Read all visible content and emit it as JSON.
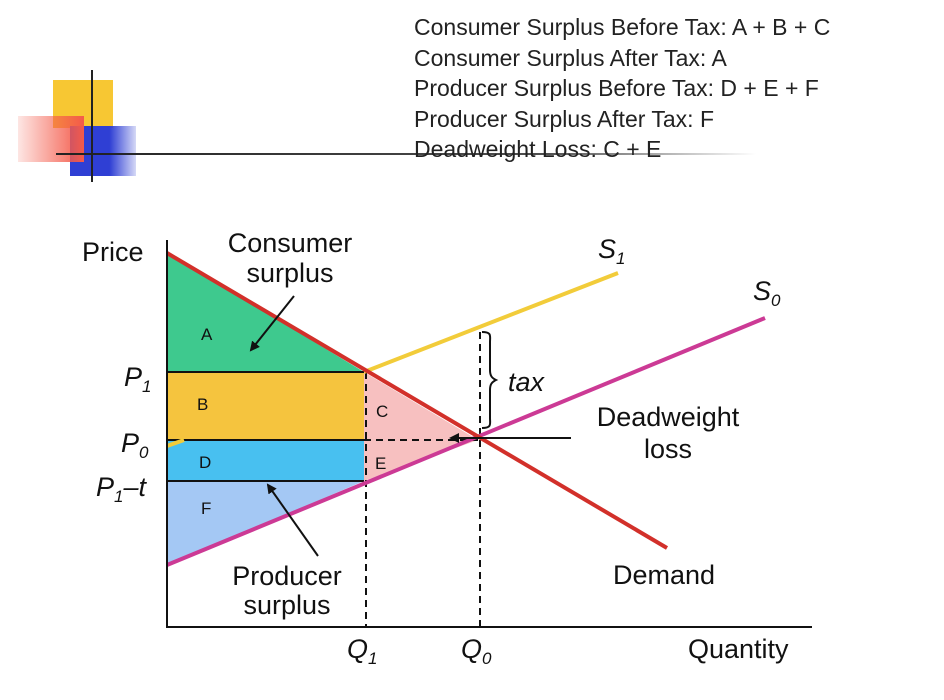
{
  "legend": {
    "line1": "Consumer Surplus Before Tax: A + B + C",
    "line2": "Consumer Surplus After Tax: A",
    "line3": "Producer Surplus Before Tax: D + E + F",
    "line4": "Producer Surplus After Tax: F",
    "line5": "Deadweight Loss: C + E"
  },
  "axes": {
    "y_label": "Price",
    "x_label": "Quantity"
  },
  "price_labels": {
    "p1": "P",
    "p1_sub": "1",
    "p0": "P",
    "p0_sub": "0",
    "p1t": "P",
    "p1t_sub": "1",
    "p1t_suffix": "–t"
  },
  "quantity_labels": {
    "q1": "Q",
    "q1_sub": "1",
    "q0": "Q",
    "q0_sub": "0"
  },
  "curves": {
    "s1": "S",
    "s1_sub": "1",
    "s0": "S",
    "s0_sub": "0",
    "demand": "Demand"
  },
  "regions": {
    "a": "A",
    "b": "B",
    "c": "C",
    "d": "D",
    "e": "E",
    "f": "F"
  },
  "annotations": {
    "consumer_surplus_1": "Consumer",
    "consumer_surplus_2": "surplus",
    "producer_surplus_1": "Producer",
    "producer_surplus_2": "surplus",
    "deadweight_1": "Deadweight",
    "deadweight_2": "loss",
    "tax": "tax"
  },
  "colors": {
    "demand": "#d2302a",
    "supply_s0": "#cc3a95",
    "supply_s1": "#f2cc3a",
    "area_a": "#3ec98e",
    "area_b": "#f5c43e",
    "area_c_e": "#f7c0c0",
    "area_d": "#48c0f0",
    "area_f": "#a4c8f4"
  }
}
